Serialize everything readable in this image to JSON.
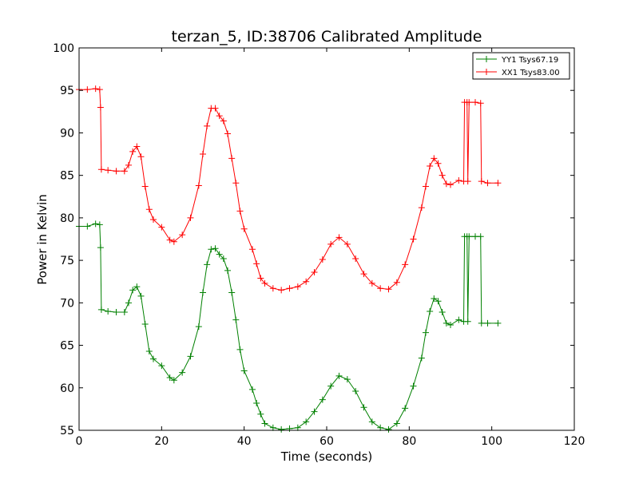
{
  "chart_data": {
    "type": "line",
    "title": "terzan_5, ID:38706 Calibrated Amplitude",
    "xlabel": "Time (seconds)",
    "ylabel": "Power in Kelvin",
    "xlim": [
      0,
      120
    ],
    "ylim": [
      55,
      100
    ],
    "xticks": [
      0,
      20,
      40,
      60,
      80,
      100,
      120
    ],
    "yticks": [
      55,
      60,
      65,
      70,
      75,
      80,
      85,
      90,
      95,
      100
    ],
    "legend_position": "top-right",
    "grid": false,
    "marker": "+",
    "series": [
      {
        "name": "YY1 Tsys67.19",
        "color": "#008000",
        "points": [
          [
            0,
            79.0
          ],
          [
            2,
            79.0
          ],
          [
            4,
            79.3
          ],
          [
            5,
            79.2
          ],
          [
            5.2,
            76.5
          ],
          [
            5.4,
            69.2
          ],
          [
            7,
            69.0
          ],
          [
            9,
            68.9
          ],
          [
            11,
            68.9
          ],
          [
            12,
            70.0
          ],
          [
            13,
            71.5
          ],
          [
            14,
            71.9
          ],
          [
            15,
            70.8
          ],
          [
            16,
            67.5
          ],
          [
            17,
            64.3
          ],
          [
            18,
            63.4
          ],
          [
            20,
            62.6
          ],
          [
            22,
            61.2
          ],
          [
            23,
            60.9
          ],
          [
            25,
            61.8
          ],
          [
            27,
            63.7
          ],
          [
            29,
            67.2
          ],
          [
            30,
            71.2
          ],
          [
            31,
            74.5
          ],
          [
            32,
            76.3
          ],
          [
            33,
            76.4
          ],
          [
            34,
            75.7
          ],
          [
            35,
            75.2
          ],
          [
            36,
            73.8
          ],
          [
            37,
            71.2
          ],
          [
            38,
            68.0
          ],
          [
            39,
            64.5
          ],
          [
            40,
            62.0
          ],
          [
            42,
            59.8
          ],
          [
            43,
            58.2
          ],
          [
            44,
            56.9
          ],
          [
            45,
            55.8
          ],
          [
            47,
            55.3
          ],
          [
            49,
            55.1
          ],
          [
            51,
            55.2
          ],
          [
            53,
            55.3
          ],
          [
            55,
            56.0
          ],
          [
            57,
            57.2
          ],
          [
            59,
            58.6
          ],
          [
            61,
            60.2
          ],
          [
            63,
            61.4
          ],
          [
            65,
            61.0
          ],
          [
            67,
            59.6
          ],
          [
            69,
            57.7
          ],
          [
            71,
            56.0
          ],
          [
            73,
            55.3
          ],
          [
            75,
            55.1
          ],
          [
            77,
            55.8
          ],
          [
            79,
            57.6
          ],
          [
            81,
            60.2
          ],
          [
            83,
            63.5
          ],
          [
            84,
            66.5
          ],
          [
            85,
            69.0
          ],
          [
            86,
            70.5
          ],
          [
            87,
            70.2
          ],
          [
            88,
            68.9
          ],
          [
            89,
            67.6
          ],
          [
            90,
            67.4
          ],
          [
            92,
            68.0
          ],
          [
            93.2,
            67.8
          ],
          [
            93.4,
            77.8
          ],
          [
            94,
            77.8
          ],
          [
            94.2,
            67.8
          ],
          [
            94.5,
            77.8
          ],
          [
            96,
            77.8
          ],
          [
            97.3,
            77.8
          ],
          [
            97.5,
            67.6
          ],
          [
            99,
            67.6
          ],
          [
            101.5,
            67.6
          ]
        ]
      },
      {
        "name": "XX1 Tsys83.00",
        "color": "#ff0000",
        "points": [
          [
            0,
            95.1
          ],
          [
            2,
            95.1
          ],
          [
            4,
            95.2
          ],
          [
            5,
            95.1
          ],
          [
            5.2,
            93.0
          ],
          [
            5.4,
            85.7
          ],
          [
            7,
            85.6
          ],
          [
            9,
            85.5
          ],
          [
            11,
            85.5
          ],
          [
            12,
            86.2
          ],
          [
            13,
            87.8
          ],
          [
            14,
            88.4
          ],
          [
            15,
            87.2
          ],
          [
            16,
            83.7
          ],
          [
            17,
            81.0
          ],
          [
            18,
            79.8
          ],
          [
            20,
            78.9
          ],
          [
            22,
            77.4
          ],
          [
            23,
            77.2
          ],
          [
            25,
            78.0
          ],
          [
            27,
            80.0
          ],
          [
            29,
            83.8
          ],
          [
            30,
            87.5
          ],
          [
            31,
            90.8
          ],
          [
            32,
            92.9
          ],
          [
            33,
            92.9
          ],
          [
            34,
            92.0
          ],
          [
            35,
            91.4
          ],
          [
            36,
            89.9
          ],
          [
            37,
            87.0
          ],
          [
            38,
            84.1
          ],
          [
            39,
            80.8
          ],
          [
            40,
            78.7
          ],
          [
            42,
            76.3
          ],
          [
            43,
            74.6
          ],
          [
            44,
            72.9
          ],
          [
            45,
            72.3
          ],
          [
            47,
            71.7
          ],
          [
            49,
            71.5
          ],
          [
            51,
            71.7
          ],
          [
            53,
            71.9
          ],
          [
            55,
            72.5
          ],
          [
            57,
            73.6
          ],
          [
            59,
            75.1
          ],
          [
            61,
            76.9
          ],
          [
            63,
            77.7
          ],
          [
            65,
            76.9
          ],
          [
            67,
            75.2
          ],
          [
            69,
            73.4
          ],
          [
            71,
            72.3
          ],
          [
            73,
            71.7
          ],
          [
            75,
            71.6
          ],
          [
            77,
            72.4
          ],
          [
            79,
            74.5
          ],
          [
            81,
            77.5
          ],
          [
            83,
            81.2
          ],
          [
            84,
            83.7
          ],
          [
            85,
            86.1
          ],
          [
            86,
            87.0
          ],
          [
            87,
            86.4
          ],
          [
            88,
            85.0
          ],
          [
            89,
            84.0
          ],
          [
            90,
            83.9
          ],
          [
            92,
            84.4
          ],
          [
            93.2,
            84.3
          ],
          [
            93.4,
            93.6
          ],
          [
            94,
            93.6
          ],
          [
            94.2,
            84.3
          ],
          [
            94.5,
            93.6
          ],
          [
            96,
            93.6
          ],
          [
            97.3,
            93.5
          ],
          [
            97.5,
            84.3
          ],
          [
            99,
            84.1
          ],
          [
            101.5,
            84.1
          ]
        ]
      }
    ]
  }
}
